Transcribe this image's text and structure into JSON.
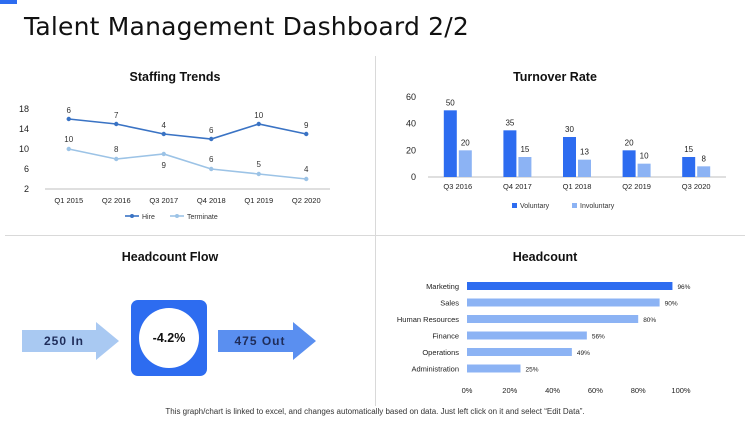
{
  "page": {
    "title": "Talent Management Dashboard 2/2",
    "footer": "This graph/chart is linked to excel, and changes automatically based on data. Just left click on it and select “Edit Data”."
  },
  "headcount_flow": {
    "heading": "Headcount Flow",
    "in_label": "250  In",
    "out_label": "475  Out",
    "center_label": "-4.2%"
  },
  "colors": {
    "accent": "#2d6cf0",
    "hire": "#3a73c4",
    "terminate": "#9cc3e6",
    "voluntary": "#2d6cf0",
    "involuntary": "#8cb3f4",
    "arrow": "#a9c9f2",
    "arrow_dark": "#5a8ff0"
  },
  "chart_data": [
    {
      "id": "staffing",
      "type": "line",
      "title": "Staffing Trends",
      "categories": [
        "Q1 2015",
        "Q2 2016",
        "Q3 2017",
        "Q4 2018",
        "Q1 2019",
        "Q2 2020"
      ],
      "series": [
        {
          "name": "Hire",
          "values": [
            6,
            7,
            4,
            6,
            10,
            9
          ],
          "plotted": [
            16,
            15,
            13,
            12,
            15,
            13
          ]
        },
        {
          "name": "Terminate",
          "values": [
            10,
            8,
            9,
            6,
            5,
            4
          ],
          "plotted": [
            10,
            8,
            9,
            6,
            5,
            4
          ]
        }
      ],
      "ylim": [
        2,
        18
      ],
      "yticks": [
        2,
        6,
        10,
        14,
        18
      ],
      "legend": "bottom"
    },
    {
      "id": "turnover",
      "type": "bar",
      "title": "Turnover Rate",
      "categories": [
        "Q3 2016",
        "Q4 2017",
        "Q1 2018",
        "Q2 2019",
        "Q3 2020"
      ],
      "series": [
        {
          "name": "Voluntary",
          "values": [
            50,
            35,
            30,
            20,
            15
          ]
        },
        {
          "name": "Involuntary",
          "values": [
            20,
            15,
            13,
            10,
            8
          ]
        }
      ],
      "ylim": [
        0,
        60
      ],
      "yticks": [
        0,
        20,
        40,
        60
      ],
      "legend": "bottom"
    },
    {
      "id": "headcount",
      "type": "bar",
      "orientation": "horizontal",
      "title": "Headcount",
      "categories": [
        "Marketing",
        "Sales",
        "Human Resources",
        "Finance",
        "Operations",
        "Administration"
      ],
      "values": [
        96,
        90,
        80,
        56,
        49,
        25
      ],
      "value_suffix": "%",
      "xlim": [
        0,
        100
      ],
      "xticks": [
        "0%",
        "20%",
        "40%",
        "60%",
        "80%",
        "100%"
      ]
    }
  ]
}
